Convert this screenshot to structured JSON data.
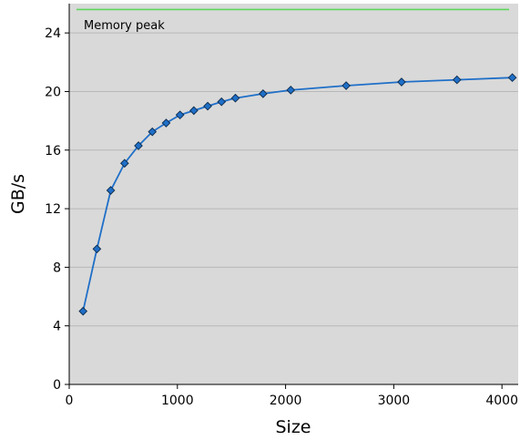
{
  "chart_data": {
    "type": "line",
    "title": "",
    "xlabel": "Size",
    "ylabel": "GB/s",
    "xlim": [
      0,
      4150
    ],
    "ylim": [
      0,
      26
    ],
    "x_ticks": [
      0,
      1000,
      2000,
      3000,
      4000
    ],
    "x_tick_labels": [
      "0",
      "1000",
      "2000",
      "3000",
      "4000"
    ],
    "y_ticks": [
      0,
      4,
      8,
      12,
      16,
      20,
      24
    ],
    "y_tick_labels": [
      "0",
      "4",
      "8",
      "12",
      "16",
      "20",
      "24"
    ],
    "grid": "horizontal",
    "background_color": "#d9d9d9",
    "series": [
      {
        "color": "#1f6fc8",
        "marker": "diamond",
        "x": [
          128,
          256,
          384,
          512,
          640,
          768,
          896,
          1024,
          1152,
          1280,
          1408,
          1536,
          1792,
          2048,
          2560,
          3072,
          3584,
          4096
        ],
        "y": [
          5.0,
          9.25,
          13.25,
          15.1,
          16.3,
          17.25,
          17.85,
          18.4,
          18.7,
          19.0,
          19.3,
          19.55,
          19.85,
          20.1,
          20.4,
          20.65,
          20.8,
          20.95
        ]
      }
    ],
    "annotations": [
      {
        "label": "Memory peak",
        "y": 25.6,
        "color": "#5cd65c"
      }
    ]
  }
}
